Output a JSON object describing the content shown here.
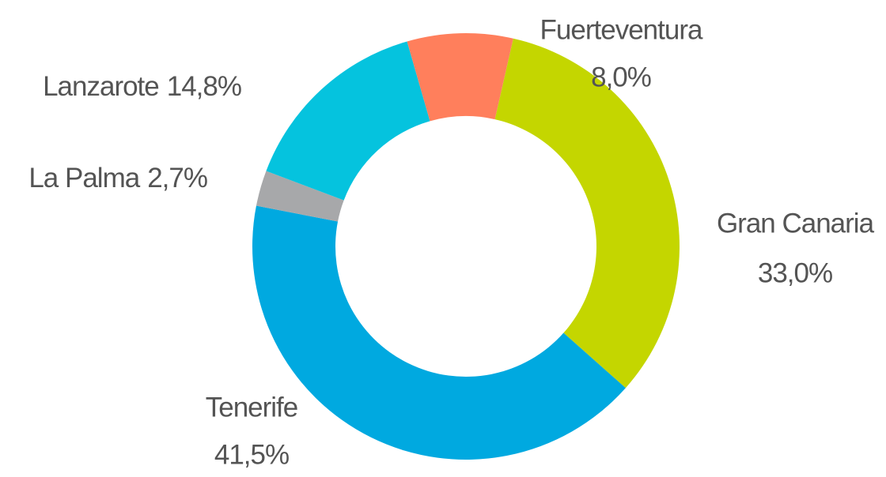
{
  "chart_data": {
    "type": "donut",
    "categories": [
      "Gran Canaria",
      "Tenerife",
      "La Palma",
      "Lanzarote",
      "Fuerteventura"
    ],
    "values": [
      33.0,
      41.5,
      2.7,
      14.8,
      8.0
    ],
    "value_labels": [
      "33,0%",
      "41,5%",
      "2,7%",
      "14,8%",
      "8,0%"
    ],
    "colors": [
      "#c4d600",
      "#00a9e0",
      "#a7a8aa",
      "#05c3de",
      "#ff7f5c"
    ]
  }
}
